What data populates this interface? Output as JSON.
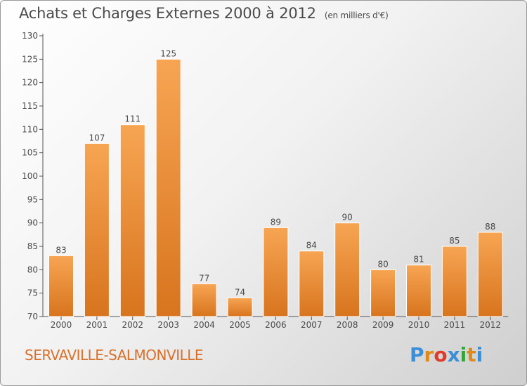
{
  "title": "Achats et Charges Externes 2000 à 2012",
  "unit": "(en milliers d'€)",
  "commune": "SERVAVILLE-SALMONVILLE",
  "logo": {
    "letters": [
      "P",
      "r",
      "o",
      "x",
      "i",
      "t",
      "i"
    ],
    "colors": [
      "#3b8fd6",
      "#e08a1a",
      "#e03a2a",
      "#3b8fd6",
      "#2fa83a",
      "#e08a1a",
      "#3b8fd6"
    ]
  },
  "colors": {
    "bar_light": "#f7a553",
    "bar_dark": "#d8741e",
    "text": "#4a4a4a",
    "commune": "#d8702a"
  },
  "chart_data": {
    "type": "bar",
    "title": "Achats et Charges Externes 2000 à 2012",
    "subtitle": "(en milliers d'€)",
    "categories": [
      "2000",
      "2001",
      "2002",
      "2003",
      "2004",
      "2005",
      "2006",
      "2007",
      "2008",
      "2009",
      "2010",
      "2011",
      "2012"
    ],
    "values": [
      83,
      107,
      111,
      125,
      77,
      74,
      89,
      84,
      90,
      80,
      81,
      85,
      88
    ],
    "ylim": [
      70,
      130
    ],
    "yticks": [
      70,
      75,
      80,
      85,
      90,
      95,
      100,
      105,
      110,
      115,
      120,
      125,
      130
    ],
    "xlabel": "",
    "ylabel": "",
    "grid": false,
    "legend": "none"
  }
}
